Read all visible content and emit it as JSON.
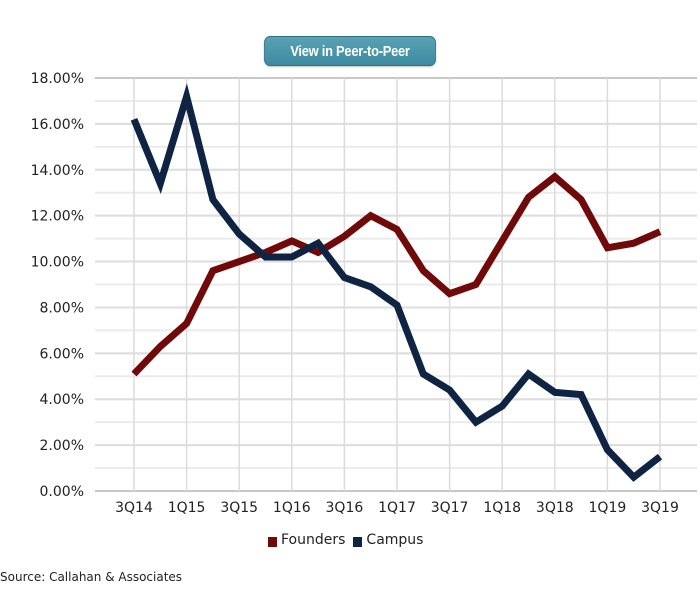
{
  "button": {
    "label": "View in Peer-to-Peer"
  },
  "source": "Source: Callahan & Associates",
  "chart_data": {
    "type": "line",
    "title": "",
    "xlabel": "",
    "ylabel": "",
    "ylim": [
      0,
      18
    ],
    "y_major_step": 2,
    "y_minor_step": 1,
    "y_tick_labels": [
      "0.00%",
      "2.00%",
      "4.00%",
      "6.00%",
      "8.00%",
      "10.00%",
      "12.00%",
      "14.00%",
      "16.00%",
      "18.00%"
    ],
    "grid": true,
    "legend": "bottom",
    "categories": [
      "3Q14",
      "4Q14",
      "1Q15",
      "2Q15",
      "3Q15",
      "4Q15",
      "1Q16",
      "2Q16",
      "3Q16",
      "4Q16",
      "1Q17",
      "2Q17",
      "3Q17",
      "4Q17",
      "1Q18",
      "2Q18",
      "3Q18",
      "4Q18",
      "1Q19",
      "2Q19",
      "3Q19"
    ],
    "x_tick_labels": [
      "3Q14",
      "1Q15",
      "3Q15",
      "1Q16",
      "3Q16",
      "1Q17",
      "3Q17",
      "1Q18",
      "3Q18",
      "1Q19",
      "3Q19"
    ],
    "series": [
      {
        "name": "Founders",
        "color": "#700a0a",
        "values": [
          5.1,
          6.3,
          7.3,
          9.6,
          10.0,
          10.4,
          10.9,
          10.4,
          11.1,
          12.0,
          11.4,
          9.6,
          8.6,
          9.0,
          10.9,
          12.8,
          13.7,
          12.7,
          10.6,
          10.8,
          11.3
        ]
      },
      {
        "name": "Campus",
        "color": "#0f2442",
        "values": [
          16.2,
          13.4,
          17.2,
          12.7,
          11.2,
          10.2,
          10.2,
          10.8,
          9.3,
          8.9,
          8.1,
          5.1,
          4.4,
          3.0,
          3.7,
          5.1,
          4.3,
          4.2,
          1.8,
          0.6,
          1.5
        ]
      }
    ]
  }
}
